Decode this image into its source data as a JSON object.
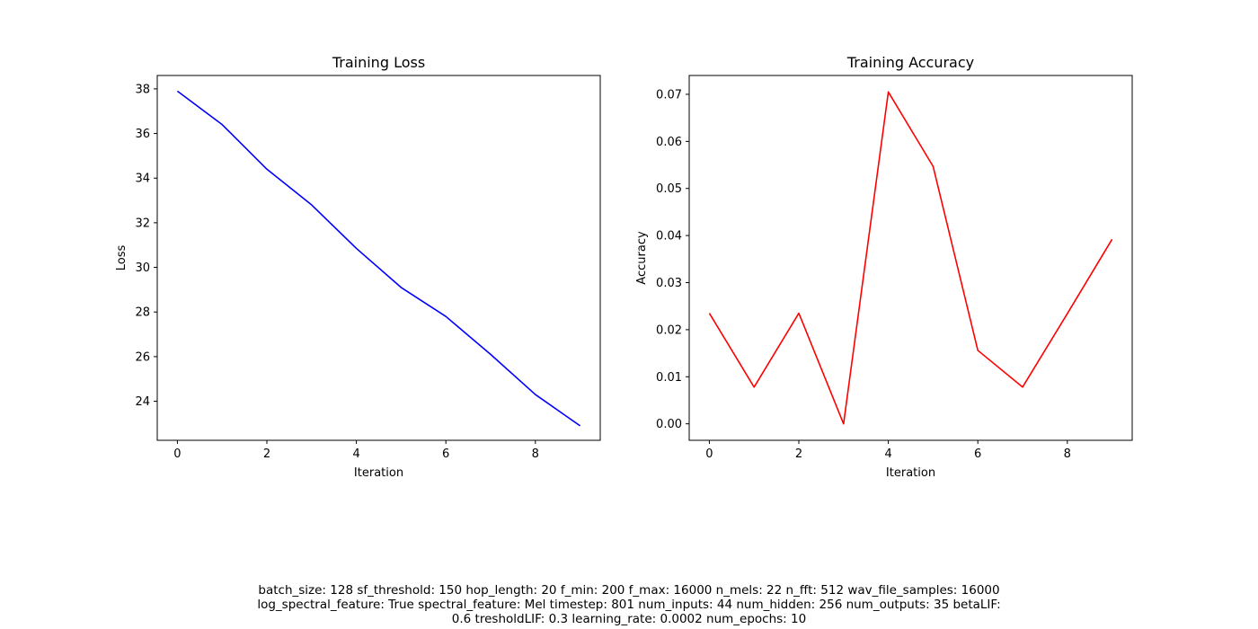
{
  "chart_data": [
    {
      "type": "line",
      "title": "Training Loss",
      "xlabel": "Iteration",
      "ylabel": "Loss",
      "x": [
        0,
        1,
        2,
        3,
        4,
        5,
        6,
        7,
        8,
        9
      ],
      "series": [
        {
          "color": "#0000ff",
          "values": [
            37.9,
            36.4,
            34.4,
            32.8,
            30.85,
            29.1,
            27.8,
            26.1,
            24.3,
            22.9
          ]
        }
      ],
      "xlim": [
        -0.45,
        9.45
      ],
      "ylim": [
        22.25,
        38.6
      ],
      "xticks": [
        0,
        2,
        4,
        6,
        8
      ],
      "xtick_labels": [
        "0",
        "2",
        "4",
        "6",
        "8"
      ],
      "yticks": [
        24,
        26,
        28,
        30,
        32,
        34,
        36,
        38
      ],
      "ytick_labels": [
        "24",
        "26",
        "28",
        "30",
        "32",
        "34",
        "36",
        "38"
      ],
      "grid": false
    },
    {
      "type": "line",
      "title": "Training Accuracy",
      "xlabel": "Iteration",
      "ylabel": "Accuracy",
      "x": [
        0,
        1,
        2,
        3,
        4,
        5,
        6,
        7,
        8,
        9
      ],
      "series": [
        {
          "color": "#ff0000",
          "values": [
            0.0235,
            0.0078,
            0.0235,
            0.0,
            0.0705,
            0.0547,
            0.0156,
            0.0078,
            0.0234,
            0.0392
          ]
        }
      ],
      "xlim": [
        -0.45,
        9.45
      ],
      "ylim": [
        -0.0035,
        0.074
      ],
      "xticks": [
        0,
        2,
        4,
        6,
        8
      ],
      "xtick_labels": [
        "0",
        "2",
        "4",
        "6",
        "8"
      ],
      "yticks": [
        0.0,
        0.01,
        0.02,
        0.03,
        0.04,
        0.05,
        0.06,
        0.07
      ],
      "ytick_labels": [
        "0.00",
        "0.01",
        "0.02",
        "0.03",
        "0.04",
        "0.05",
        "0.06",
        "0.07"
      ],
      "grid": false
    }
  ],
  "caption": {
    "lines": [
      "batch_size: 128 sf_threshold: 150 hop_length: 20 f_min: 200 f_max: 16000 n_mels: 22 n_fft: 512 wav_file_samples: 16000",
      "log_spectral_feature: True spectral_feature: Mel timestep: 801 num_inputs: 44 num_hidden: 256 num_outputs: 35 betaLIF:",
      "0.6 tresholdLIF: 0.3 learning_rate: 0.0002 num_epochs: 10"
    ]
  }
}
